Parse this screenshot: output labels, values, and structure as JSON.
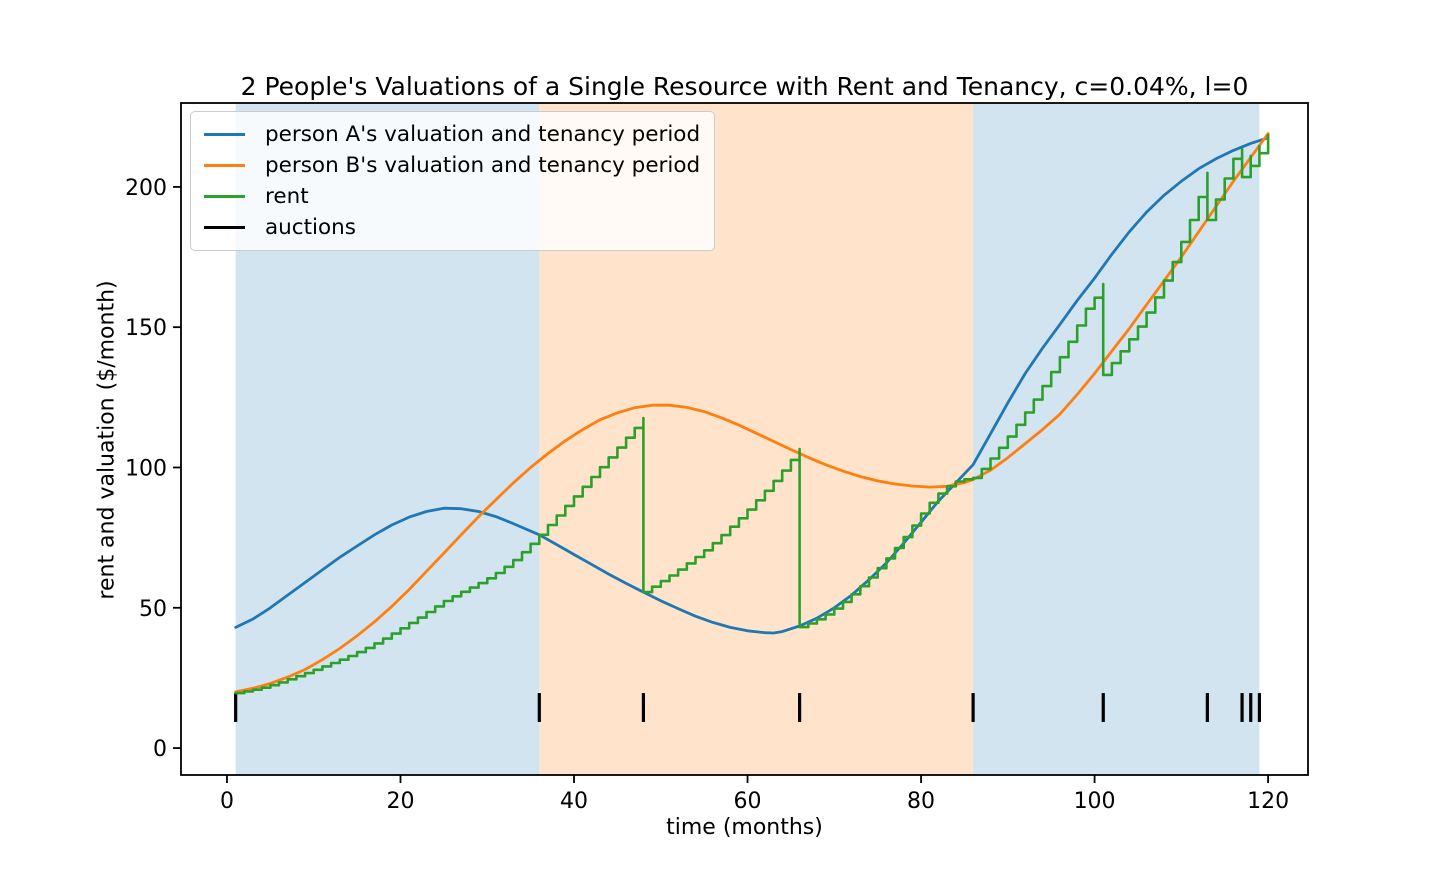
{
  "title": "2 People's Valuations of a Single Resource with Rent and Tenancy, c=0.04%, l=0",
  "axes": {
    "xlabel": "time (months)",
    "ylabel": "rent and valuation ($/month)",
    "xticks": [
      0,
      20,
      40,
      60,
      80,
      100,
      120
    ],
    "yticks": [
      0,
      50,
      100,
      150,
      200
    ],
    "xlim": [
      -5.3,
      124.6
    ],
    "ylim": [
      -9.6,
      229.9
    ],
    "grid": false
  },
  "legend": {
    "position": "upper left",
    "items": [
      {
        "label": "person A's valuation and tenancy period",
        "color": "#1f77b4"
      },
      {
        "label": "person B's valuation and tenancy period",
        "color": "#ff7f0e"
      },
      {
        "label": "rent",
        "color": "#2ca02c"
      },
      {
        "label": "auctions",
        "color": "#000000"
      }
    ]
  },
  "chart_data": {
    "type": "line",
    "title": "2 People's Valuations of a Single Resource with Rent and Tenancy, c=0.04%, l=0",
    "xlabel": "time (months)",
    "ylabel": "rent and valuation ($/month)",
    "series": [
      {
        "name": "person A's valuation and tenancy period",
        "color": "#1f77b4",
        "width": 2.8,
        "step": false,
        "points": [
          [
            1,
            43
          ],
          [
            3,
            46
          ],
          [
            5,
            50
          ],
          [
            7,
            54.5
          ],
          [
            9,
            59
          ],
          [
            11,
            63.5
          ],
          [
            13,
            68
          ],
          [
            15,
            72
          ],
          [
            17,
            76
          ],
          [
            19,
            79.5
          ],
          [
            21,
            82.3
          ],
          [
            23,
            84.3
          ],
          [
            25,
            85.5
          ],
          [
            27,
            85.3
          ],
          [
            29,
            84.3
          ],
          [
            31,
            82.5
          ],
          [
            33,
            80
          ],
          [
            36,
            76
          ],
          [
            38,
            72.5
          ],
          [
            40,
            69
          ],
          [
            42,
            65.5
          ],
          [
            44,
            62
          ],
          [
            46,
            58.7
          ],
          [
            48,
            55.6
          ],
          [
            50,
            52.5
          ],
          [
            52,
            49.7
          ],
          [
            54,
            47
          ],
          [
            56,
            44.8
          ],
          [
            58,
            43
          ],
          [
            60,
            41.8
          ],
          [
            62,
            41.1
          ],
          [
            63,
            41
          ],
          [
            64,
            41.5
          ],
          [
            66,
            43.5
          ],
          [
            68,
            46.3
          ],
          [
            70,
            50
          ],
          [
            72,
            54.5
          ],
          [
            74,
            60
          ],
          [
            76,
            66
          ],
          [
            78,
            73
          ],
          [
            80,
            80.5
          ],
          [
            82,
            88
          ],
          [
            84,
            94.5
          ],
          [
            86,
            101
          ],
          [
            88,
            112
          ],
          [
            90,
            123
          ],
          [
            92,
            133.5
          ],
          [
            94,
            142.5
          ],
          [
            96,
            151
          ],
          [
            98,
            159.5
          ],
          [
            100,
            167.5
          ],
          [
            102,
            176
          ],
          [
            104,
            184
          ],
          [
            106,
            191
          ],
          [
            108,
            197
          ],
          [
            110,
            202
          ],
          [
            112,
            206.5
          ],
          [
            114,
            210
          ],
          [
            116,
            213
          ],
          [
            118,
            215.5
          ],
          [
            120,
            217.5
          ]
        ]
      },
      {
        "name": "person B's valuation and tenancy period",
        "color": "#ff7f0e",
        "width": 2.8,
        "step": false,
        "points": [
          [
            1,
            20
          ],
          [
            3,
            21.3
          ],
          [
            5,
            23
          ],
          [
            7,
            25.3
          ],
          [
            9,
            28
          ],
          [
            11,
            31.5
          ],
          [
            13,
            35.5
          ],
          [
            15,
            40
          ],
          [
            17,
            45
          ],
          [
            19,
            50.5
          ],
          [
            21,
            56.5
          ],
          [
            23,
            63
          ],
          [
            25,
            69.5
          ],
          [
            27,
            76
          ],
          [
            29,
            82.5
          ],
          [
            31,
            88.5
          ],
          [
            33,
            94.5
          ],
          [
            35,
            100
          ],
          [
            37,
            105
          ],
          [
            39,
            109.5
          ],
          [
            41,
            113.5
          ],
          [
            43,
            117
          ],
          [
            45,
            119.5
          ],
          [
            47,
            121.3
          ],
          [
            49,
            122.2
          ],
          [
            51,
            122.2
          ],
          [
            53,
            121.4
          ],
          [
            55,
            119.9
          ],
          [
            57,
            117.7
          ],
          [
            59,
            115.1
          ],
          [
            61,
            112.2
          ],
          [
            63,
            109.3
          ],
          [
            65,
            106.4
          ],
          [
            67,
            103.6
          ],
          [
            69,
            101
          ],
          [
            71,
            98.7
          ],
          [
            73,
            96.8
          ],
          [
            75,
            95.2
          ],
          [
            77,
            94.1
          ],
          [
            79,
            93.4
          ],
          [
            81,
            93
          ],
          [
            83,
            93.3
          ],
          [
            85,
            94.6
          ],
          [
            86,
            95.7
          ],
          [
            88,
            99
          ],
          [
            90,
            103.5
          ],
          [
            92,
            108.5
          ],
          [
            94,
            113.5
          ],
          [
            96,
            119
          ],
          [
            98,
            126
          ],
          [
            100,
            133.5
          ],
          [
            102,
            141.5
          ],
          [
            104,
            149.5
          ],
          [
            106,
            158
          ],
          [
            108,
            166.5
          ],
          [
            110,
            175
          ],
          [
            112,
            184
          ],
          [
            114,
            193
          ],
          [
            116,
            202
          ],
          [
            118,
            210.5
          ],
          [
            120,
            219
          ]
        ]
      },
      {
        "name": "rent",
        "color": "#2ca02c",
        "width": 2.6,
        "step": true,
        "points": [
          [
            1,
            19.6
          ],
          [
            2,
            20.2
          ],
          [
            3,
            20.8
          ],
          [
            4,
            21.5
          ],
          [
            5,
            22.4
          ],
          [
            6,
            23.4
          ],
          [
            7,
            24.5
          ],
          [
            8,
            25.6
          ],
          [
            9,
            26.7
          ],
          [
            10,
            27.9
          ],
          [
            11,
            29.1
          ],
          [
            12,
            30.3
          ],
          [
            13,
            31.5
          ],
          [
            14,
            32.8
          ],
          [
            15,
            34.2
          ],
          [
            16,
            35.7
          ],
          [
            17,
            37.3
          ],
          [
            18,
            39
          ],
          [
            19,
            40.8
          ],
          [
            20,
            42.7
          ],
          [
            21,
            44.6
          ],
          [
            22,
            46.5
          ],
          [
            23,
            48.5
          ],
          [
            24,
            50.5
          ],
          [
            25,
            52.4
          ],
          [
            26,
            54.1
          ],
          [
            27,
            55.7
          ],
          [
            28,
            57.2
          ],
          [
            29,
            58.8
          ],
          [
            30,
            60.5
          ],
          [
            31,
            62.4
          ],
          [
            32,
            64.6
          ],
          [
            33,
            67
          ],
          [
            34,
            69.8
          ],
          [
            35,
            72.8
          ],
          [
            36,
            76
          ],
          [
            37,
            79.5
          ],
          [
            38,
            82.9
          ],
          [
            39,
            86.3
          ],
          [
            40,
            89.7
          ],
          [
            41,
            93.1
          ],
          [
            42,
            96.6
          ],
          [
            43,
            100.1
          ],
          [
            44,
            103.6
          ],
          [
            45,
            107.1
          ],
          [
            46,
            110.6
          ],
          [
            47,
            114.1
          ],
          [
            48,
            117.6
          ],
          [
            48,
            55.6
          ],
          [
            49,
            57.5
          ],
          [
            50,
            59.5
          ],
          [
            51,
            61.5
          ],
          [
            52,
            63.6
          ],
          [
            53,
            65.8
          ],
          [
            54,
            68.1
          ],
          [
            55,
            70.5
          ],
          [
            56,
            73
          ],
          [
            57,
            75.9
          ],
          [
            58,
            78.9
          ],
          [
            59,
            81.9
          ],
          [
            60,
            85
          ],
          [
            61,
            88.3
          ],
          [
            62,
            91.7
          ],
          [
            63,
            95.2
          ],
          [
            64,
            98.9
          ],
          [
            65,
            102.7
          ],
          [
            66,
            106.6
          ],
          [
            66,
            43.1
          ],
          [
            67,
            44.4
          ],
          [
            68,
            45.9
          ],
          [
            69,
            47.6
          ],
          [
            70,
            49.7
          ],
          [
            71,
            52.1
          ],
          [
            72,
            54.8
          ],
          [
            73,
            57.7
          ],
          [
            74,
            60.8
          ],
          [
            75,
            64.1
          ],
          [
            76,
            67.6
          ],
          [
            77,
            71.3
          ],
          [
            78,
            75.2
          ],
          [
            79,
            79.3
          ],
          [
            80,
            83.6
          ],
          [
            81,
            87.4
          ],
          [
            82,
            90.7
          ],
          [
            83,
            93.3
          ],
          [
            84,
            95
          ],
          [
            85,
            95.8
          ],
          [
            86,
            96.3
          ],
          [
            87,
            99.5
          ],
          [
            88,
            103.2
          ],
          [
            89,
            107
          ],
          [
            90,
            111
          ],
          [
            91,
            115.2
          ],
          [
            92,
            119.6
          ],
          [
            93,
            124.2
          ],
          [
            94,
            129
          ],
          [
            95,
            134
          ],
          [
            96,
            139.3
          ],
          [
            97,
            144.8
          ],
          [
            98,
            150.6
          ],
          [
            99,
            156.6
          ],
          [
            100,
            160.5
          ],
          [
            101,
            165.4
          ],
          [
            101,
            133
          ],
          [
            102,
            137.2
          ],
          [
            103,
            141.4
          ],
          [
            104,
            145.7
          ],
          [
            105,
            150.2
          ],
          [
            106,
            155.2
          ],
          [
            107,
            160.6
          ],
          [
            108,
            166.6
          ],
          [
            109,
            173.2
          ],
          [
            110,
            180.4
          ],
          [
            111,
            188.2
          ],
          [
            112,
            196.4
          ],
          [
            113,
            205
          ],
          [
            113,
            188.2
          ],
          [
            114,
            195.5
          ],
          [
            115,
            203
          ],
          [
            116,
            210
          ],
          [
            117,
            213.5
          ],
          [
            117,
            203.5
          ],
          [
            118,
            211
          ],
          [
            118,
            207.5
          ],
          [
            119,
            214.5
          ],
          [
            119,
            212
          ],
          [
            120,
            218.5
          ]
        ]
      }
    ],
    "auctions": {
      "label": "auctions",
      "months": [
        1,
        36,
        48,
        66,
        86,
        101,
        113,
        117,
        118,
        119
      ],
      "y_span": [
        9.3,
        19.6
      ],
      "color": "#000000",
      "width": 3.2
    },
    "tenancy_spans": [
      {
        "start": 1,
        "end": 36,
        "person": "A",
        "color": "#1f77b4",
        "opacity": 0.2
      },
      {
        "start": 36,
        "end": 86,
        "person": "B",
        "color": "#ff7f0e",
        "opacity": 0.22
      },
      {
        "start": 86,
        "end": 119,
        "person": "A",
        "color": "#1f77b4",
        "opacity": 0.2
      }
    ]
  }
}
